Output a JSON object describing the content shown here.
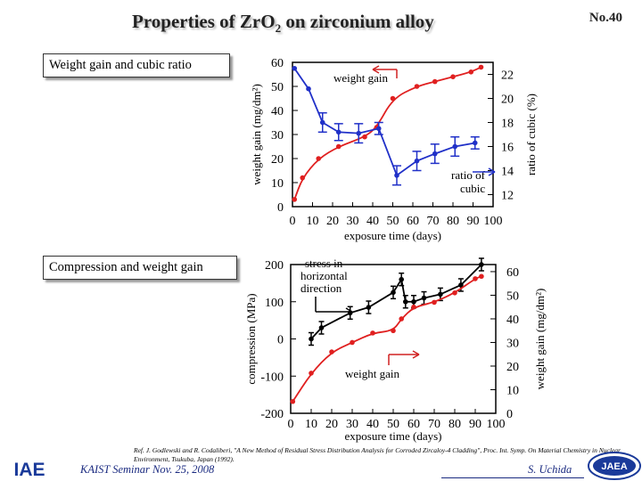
{
  "header": {
    "title_main": "Properties of ZrO",
    "title_sub": "2",
    "title_tail": " on zirconium alloy",
    "slide_number": "No.40"
  },
  "sections": {
    "chart1_label": "Weight gain and cubic ratio",
    "chart2_label": "Compression and weight gain"
  },
  "chart_data": [
    {
      "type": "line",
      "xlabel": "exposure time (days)",
      "ylabel_left": "weight gain (mg/dm²)",
      "ylabel_right": "ratio of cubic (%)",
      "xlim": [
        0,
        100
      ],
      "xticks": [
        0,
        10,
        20,
        30,
        40,
        50,
        60,
        70,
        80,
        90,
        100
      ],
      "ylim_left": [
        0,
        60
      ],
      "yticks_left": [
        0,
        10,
        20,
        30,
        40,
        50,
        60
      ],
      "ylim_right": [
        11,
        23
      ],
      "yticks_right": [
        12,
        14,
        16,
        18,
        20,
        22
      ],
      "annotations": [
        "weight gain",
        "ratio of cubic"
      ],
      "series": [
        {
          "name": "weight gain",
          "axis": "left",
          "color": "#e02020",
          "x": [
            1,
            5,
            13,
            23,
            36,
            42,
            50,
            62,
            71,
            80,
            89,
            94
          ],
          "y": [
            3,
            12,
            20,
            25,
            29,
            33,
            45,
            50,
            52,
            54,
            56,
            58
          ]
        },
        {
          "name": "ratio of cubic",
          "axis": "right",
          "color": "#2030c8",
          "x": [
            1,
            8,
            15,
            23,
            33,
            43,
            52,
            62,
            71,
            81,
            91
          ],
          "y": [
            22.5,
            20.8,
            18.0,
            17.2,
            17.1,
            17.5,
            13.6,
            14.8,
            15.4,
            16.0,
            16.3
          ],
          "error": [
            0.0,
            0.0,
            0.8,
            0.7,
            0.8,
            0.5,
            0.8,
            0.8,
            0.8,
            0.8,
            0.5
          ]
        }
      ]
    },
    {
      "type": "line",
      "xlabel": "exposure time (days)",
      "ylabel_left": "compression (MPa)",
      "ylabel_right": "weight gain (mg/dm²)",
      "xlim": [
        0,
        100
      ],
      "xticks": [
        0,
        10,
        20,
        30,
        40,
        50,
        60,
        70,
        80,
        90,
        100
      ],
      "ylim_left": [
        -200,
        200
      ],
      "yticks_left": [
        -200,
        -100,
        0,
        100,
        200
      ],
      "ylim_right": [
        0,
        63
      ],
      "yticks_right": [
        0,
        10,
        20,
        30,
        40,
        50,
        60
      ],
      "annotations": [
        "stress in horizontal direction",
        "weight gain"
      ],
      "series": [
        {
          "name": "stress in horizontal direction",
          "axis": "left",
          "color": "#000000",
          "x": [
            10,
            15,
            29,
            38,
            50,
            54,
            56,
            60,
            65,
            73,
            83,
            93
          ],
          "y": [
            0,
            30,
            70,
            85,
            125,
            160,
            100,
            100,
            110,
            120,
            145,
            200
          ]
        },
        {
          "name": "weight gain",
          "axis": "right",
          "color": "#e02020",
          "x": [
            1,
            10,
            20,
            30,
            40,
            50,
            54,
            60,
            70,
            80,
            90,
            93
          ],
          "y": [
            5,
            17,
            26,
            30,
            34,
            35,
            40,
            45,
            47,
            51,
            57,
            58
          ]
        }
      ]
    }
  ],
  "footer": {
    "reference": "Ref. J. Godlewski and R. Codaliberi, \"A New Method of Residual Stress Distribution Analysis for Corroded Zircaloy-4 Cladding\", Proc. Int. Symp. On Material Chemistry in Nuclear Environment, Tsukuba, Japan (1992).",
    "seminar": "KAIST Seminar  Nov. 25, 2008",
    "author": "S. Uchida",
    "logo_left_text": "IAE",
    "logo_right_text": "JAEA"
  },
  "colors": {
    "red_series": "#e02020",
    "blue_series": "#2030c8",
    "black_series": "#000000",
    "footer_text": "#1a2a80"
  }
}
